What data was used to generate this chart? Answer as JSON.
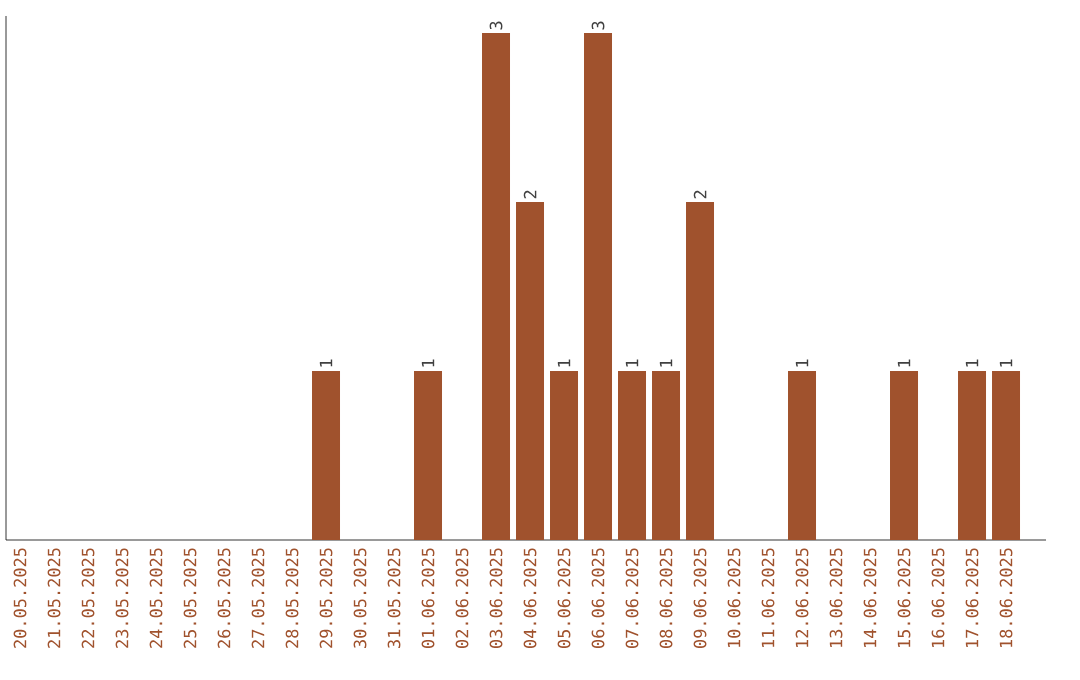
{
  "chart_data": {
    "type": "bar",
    "categories": [
      "20.05.2025",
      "21.05.2025",
      "22.05.2025",
      "23.05.2025",
      "24.05.2025",
      "25.05.2025",
      "26.05.2025",
      "27.05.2025",
      "28.05.2025",
      "29.05.2025",
      "30.05.2025",
      "31.05.2025",
      "01.06.2025",
      "02.06.2025",
      "03.06.2025",
      "04.06.2025",
      "05.06.2025",
      "06.06.2025",
      "07.06.2025",
      "08.06.2025",
      "09.06.2025",
      "10.06.2025",
      "11.06.2025",
      "12.06.2025",
      "13.06.2025",
      "14.06.2025",
      "15.06.2025",
      "16.06.2025",
      "17.06.2025",
      "18.06.2025"
    ],
    "values": [
      0,
      0,
      0,
      0,
      0,
      0,
      0,
      0,
      0,
      1,
      0,
      0,
      1,
      0,
      3,
      2,
      1,
      3,
      1,
      1,
      2,
      0,
      0,
      1,
      0,
      0,
      1,
      0,
      1,
      1
    ],
    "value_labels": [
      null,
      null,
      null,
      null,
      null,
      null,
      null,
      null,
      null,
      "1",
      null,
      null,
      "1",
      null,
      "3",
      "2",
      "1",
      "3",
      "1",
      "1",
      "2",
      null,
      null,
      "1",
      null,
      null,
      "1",
      null,
      "1",
      "1"
    ],
    "color": "#a0522d",
    "ylim": [
      0,
      3.1
    ],
    "tick_labels": "x",
    "grid": false
  }
}
